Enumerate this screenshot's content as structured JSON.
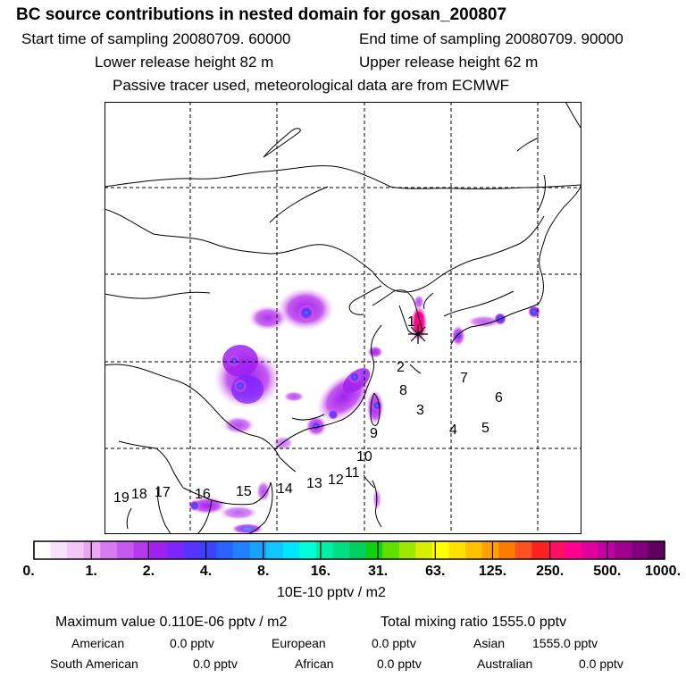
{
  "header": {
    "title": "BC  source contributions in nested domain for gosan_200807",
    "start_label": "Start time of sampling 20080709. 60000",
    "end_label": "End time of sampling 20080709. 90000",
    "lower_label": "Lower release height   82 m",
    "upper_label": "Upper release height   62 m",
    "tracer_note": "Passive tracer used, meteorological data are from ECMWF"
  },
  "map": {
    "region_labels": [
      "1",
      "2",
      "3",
      "4",
      "5",
      "6",
      "7",
      "8",
      "9",
      "10",
      "11",
      "12",
      "13",
      "14",
      "15",
      "16",
      "17",
      "18",
      "19"
    ],
    "receptor": "gosan"
  },
  "colorbar": {
    "tick_labels": [
      "0.",
      "1.",
      "2.",
      "4.",
      "8.",
      "16.",
      "31.",
      "63.",
      "125.",
      "250.",
      "500.",
      "1000."
    ],
    "colors": [
      "#ffffff",
      "#f8e2fb",
      "#f2c6f7",
      "#eaa6f3",
      "#d87af0",
      "#c55aee",
      "#b638ec",
      "#a020f0",
      "#7d24ff",
      "#5a32ff",
      "#3a44ff",
      "#2a62ff",
      "#2080ff",
      "#1aa0ff",
      "#12c4ff",
      "#00e6ff",
      "#00ffd8",
      "#00f0a8",
      "#00e080",
      "#00d060",
      "#10d010",
      "#60e000",
      "#a0e800",
      "#d8f000",
      "#ffff00",
      "#ffe000",
      "#ffc000",
      "#ffa000",
      "#ff7a00",
      "#ff5020",
      "#ff2020",
      "#ff1060",
      "#ff0090",
      "#e000a0",
      "#c000a0",
      "#a00090",
      "#800080",
      "#600060"
    ],
    "unit": "10E-10 pptv / m2"
  },
  "stats": {
    "max_value": "Maximum value  0.110E-06 pptv / m2",
    "total_mixing": "Total mixing ratio      1555.0 pptv",
    "american_label": "American",
    "american_value": "0.0 pptv",
    "european_label": "European",
    "european_value": "0.0 pptv",
    "asian_label": "Asian",
    "asian_value": "1555.0 pptv",
    "south_american_label": "South American",
    "south_american_value": "0.0 pptv",
    "african_label": "African",
    "african_value": "0.0 pptv",
    "australian_label": "Australian",
    "australian_value": "0.0 pptv"
  }
}
